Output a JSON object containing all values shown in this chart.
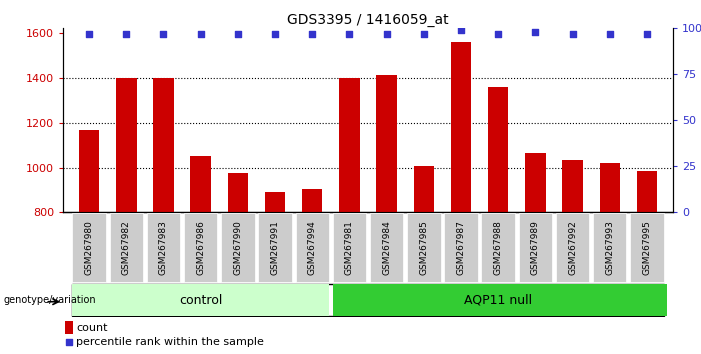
{
  "title": "GDS3395 / 1416059_at",
  "categories": [
    "GSM267980",
    "GSM267982",
    "GSM267983",
    "GSM267986",
    "GSM267990",
    "GSM267991",
    "GSM267994",
    "GSM267981",
    "GSM267984",
    "GSM267985",
    "GSM267987",
    "GSM267988",
    "GSM267989",
    "GSM267992",
    "GSM267993",
    "GSM267995"
  ],
  "bar_values": [
    1165,
    1400,
    1400,
    1050,
    975,
    890,
    905,
    1400,
    1410,
    1005,
    1560,
    1360,
    1065,
    1035,
    1020,
    985
  ],
  "percentile_values": [
    97,
    97,
    97,
    97,
    97,
    97,
    97,
    97,
    97,
    97,
    99,
    97,
    98,
    97,
    97,
    97
  ],
  "bar_color": "#cc0000",
  "dot_color": "#3333cc",
  "ylim_left": [
    800,
    1620
  ],
  "ylim_right": [
    0,
    100
  ],
  "yticks_left": [
    800,
    1000,
    1200,
    1400,
    1600
  ],
  "yticks_right": [
    0,
    25,
    50,
    75,
    100
  ],
  "yticklabels_right": [
    "0",
    "25",
    "50",
    "75",
    "100%"
  ],
  "grid_values": [
    1000,
    1200,
    1400
  ],
  "control_count": 7,
  "control_label": "control",
  "aqp11_label": "AQP11 null",
  "genotype_label": "genotype/variation",
  "legend_count": "count",
  "legend_percentile": "percentile rank within the sample",
  "control_color": "#ccffcc",
  "aqp11_color": "#33cc33",
  "cell_bg_color": "#cccccc",
  "cell_border_color": "#888888",
  "title_fontsize": 10,
  "bar_width": 0.55
}
